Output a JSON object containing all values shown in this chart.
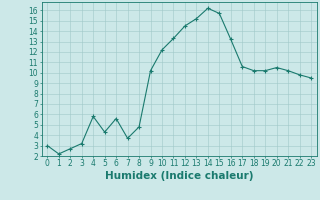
{
  "x": [
    0,
    1,
    2,
    3,
    4,
    5,
    6,
    7,
    8,
    9,
    10,
    11,
    12,
    13,
    14,
    15,
    16,
    17,
    18,
    19,
    20,
    21,
    22,
    23
  ],
  "y": [
    3.0,
    2.2,
    2.7,
    3.2,
    5.8,
    4.3,
    5.6,
    3.7,
    4.8,
    10.2,
    12.2,
    13.3,
    14.5,
    15.2,
    16.2,
    15.7,
    13.2,
    10.6,
    10.2,
    10.2,
    10.5,
    10.2,
    9.8,
    9.5
  ],
  "line_color": "#1a7a6e",
  "marker": "+",
  "marker_color": "#1a7a6e",
  "bg_color": "#cce8e8",
  "grid_color": "#a0c8c8",
  "xlabel": "Humidex (Indice chaleur)",
  "xlim": [
    -0.5,
    23.5
  ],
  "ylim": [
    2,
    16.8
  ],
  "yticks": [
    2,
    3,
    4,
    5,
    6,
    7,
    8,
    9,
    10,
    11,
    12,
    13,
    14,
    15,
    16
  ],
  "xticks": [
    0,
    1,
    2,
    3,
    4,
    5,
    6,
    7,
    8,
    9,
    10,
    11,
    12,
    13,
    14,
    15,
    16,
    17,
    18,
    19,
    20,
    21,
    22,
    23
  ],
  "tick_label_fontsize": 5.5,
  "xlabel_fontsize": 7.5,
  "axis_color": "#1a7a6e"
}
